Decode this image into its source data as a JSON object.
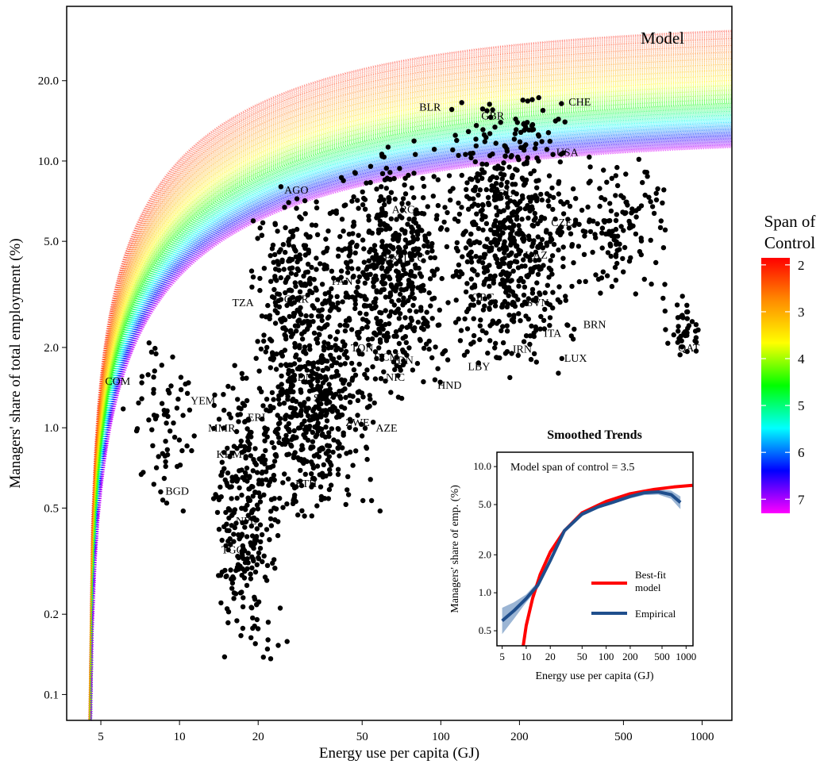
{
  "chart_data": [
    {
      "type": "scatter",
      "title": "",
      "corner_label": "Model",
      "xlabel": "Energy use per capita (GJ)",
      "ylabel": "Managers' share of total employment (%)",
      "x_scale": "log",
      "y_scale": "log",
      "xlim": [
        3.7,
        1300
      ],
      "ylim": [
        0.08,
        38
      ],
      "x_ticks": [
        5,
        10,
        20,
        50,
        100,
        200,
        500,
        1000
      ],
      "x_tick_labels": [
        "5",
        "10",
        "20",
        "50",
        "100",
        "200",
        "500",
        "1000"
      ],
      "y_ticks": [
        0.1,
        0.2,
        0.5,
        1.0,
        2.0,
        5.0,
        10.0,
        20.0
      ],
      "y_tick_labels": [
        "0.1",
        "0.2",
        "0.5",
        "1.0",
        "2.0",
        "5.0",
        "10.0",
        "20.0"
      ],
      "grid": false,
      "legend": {
        "title_lines": [
          "Span of",
          "Control"
        ],
        "placement": "right",
        "type": "colorbar",
        "range": [
          1.85,
          7.3
        ],
        "ticks": [
          2,
          3,
          4,
          5,
          6,
          7
        ],
        "tick_labels": [
          "2",
          "3",
          "4",
          "5",
          "6",
          "7"
        ],
        "gradient": [
          "#ff0000",
          "#ff8c00",
          "#ffff00",
          "#00ff00",
          "#00ffff",
          "#0000ff",
          "#ff00ff"
        ]
      },
      "model_band": {
        "span_min": 2,
        "span_max": 7.2,
        "curve": "y = k (1 - (E0/x)^0.45), k = 100/(span+1)",
        "E0": 4.5,
        "alpha": 0.45,
        "sample_spans": [
          2.0,
          2.2,
          2.4,
          2.6,
          2.8,
          3.0,
          3.2,
          3.4,
          3.6,
          3.8,
          4.0,
          4.2,
          4.4,
          4.6,
          4.8,
          5.0,
          5.2,
          5.4,
          5.6,
          5.8,
          6.0,
          6.2,
          6.4,
          6.6,
          6.8,
          7.0,
          7.2
        ]
      },
      "country_labels": [
        {
          "code": "COM",
          "x": 5.8,
          "y": 1.5
        },
        {
          "code": "YEM",
          "x": 12.3,
          "y": 1.27
        },
        {
          "code": "MMR",
          "x": 14.5,
          "y": 1.0
        },
        {
          "code": "KHM",
          "x": 15.5,
          "y": 0.8
        },
        {
          "code": "BGD",
          "x": 9.8,
          "y": 0.58
        },
        {
          "code": "ERI",
          "x": 19.7,
          "y": 1.1
        },
        {
          "code": "SDN",
          "x": 29.5,
          "y": 1.55
        },
        {
          "code": "SLV",
          "x": 35.5,
          "y": 1.3
        },
        {
          "code": "NPL",
          "x": 18.0,
          "y": 0.45
        },
        {
          "code": "TGO",
          "x": 16.0,
          "y": 0.35
        },
        {
          "code": "ETH",
          "x": 30.5,
          "y": 0.62
        },
        {
          "code": "ZWE",
          "x": 48.0,
          "y": 1.05
        },
        {
          "code": "AZE",
          "x": 62.0,
          "y": 1.0
        },
        {
          "code": "TZA",
          "x": 17.5,
          "y": 2.95
        },
        {
          "code": "CMR",
          "x": 28.0,
          "y": 3.05
        },
        {
          "code": "TON",
          "x": 50.0,
          "y": 2.0
        },
        {
          "code": "DCM",
          "x": 62.0,
          "y": 1.85
        },
        {
          "code": "IDN",
          "x": 72.0,
          "y": 1.8
        },
        {
          "code": "NIC",
          "x": 67.0,
          "y": 1.55
        },
        {
          "code": "HND",
          "x": 108.0,
          "y": 1.45
        },
        {
          "code": "LBY",
          "x": 140.0,
          "y": 1.7
        },
        {
          "code": "PAN",
          "x": 42.0,
          "y": 3.55
        },
        {
          "code": "MEX",
          "x": 62.0,
          "y": 4.35
        },
        {
          "code": "LYC",
          "x": 79.0,
          "y": 4.35
        },
        {
          "code": "AGO",
          "x": 28.0,
          "y": 7.8
        },
        {
          "code": "ARG",
          "x": 72.0,
          "y": 6.6
        },
        {
          "code": "BLR",
          "x": 91.0,
          "y": 16.0
        },
        {
          "code": "GBR",
          "x": 158.0,
          "y": 14.8
        },
        {
          "code": "CHE",
          "x": 340.0,
          "y": 16.7
        },
        {
          "code": "USA",
          "x": 305.0,
          "y": 10.8
        },
        {
          "code": "POL",
          "x": 172.0,
          "y": 7.6
        },
        {
          "code": "CZE",
          "x": 290.0,
          "y": 5.9
        },
        {
          "code": "KAZ",
          "x": 232.0,
          "y": 4.45
        },
        {
          "code": "GRC",
          "x": 145.0,
          "y": 3.1
        },
        {
          "code": "SVN",
          "x": 235.0,
          "y": 2.95
        },
        {
          "code": "BRN",
          "x": 388.0,
          "y": 2.45
        },
        {
          "code": "ITA",
          "x": 268.0,
          "y": 2.27
        },
        {
          "code": "IRN",
          "x": 205.0,
          "y": 1.98
        },
        {
          "code": "LUX",
          "x": 328.0,
          "y": 1.83
        },
        {
          "code": "QAT",
          "x": 890.0,
          "y": 2.0
        }
      ],
      "series": [
        {
          "name": "Empirical",
          "clusters": [
            {
              "x_range": [
                6,
                13
              ],
              "y_range": [
                0.4,
                2.5
              ],
              "n": 70
            },
            {
              "x_range": [
                13,
                26
              ],
              "y_range": [
                0.12,
                1.8
              ],
              "n": 320
            },
            {
              "x_range": [
                19,
                60
              ],
              "y_range": [
                0.4,
                3.0
              ],
              "n": 380
            },
            {
              "x_range": [
                18,
                50
              ],
              "y_range": [
                0.8,
                9.5
              ],
              "n": 380
            },
            {
              "x_range": [
                40,
                110
              ],
              "y_range": [
                1.2,
                12.0
              ],
              "n": 520
            },
            {
              "x_range": [
                100,
                330
              ],
              "y_range": [
                1.4,
                19.0
              ],
              "n": 650
            },
            {
              "x_range": [
                260,
                800
              ],
              "y_range": [
                3.0,
                11.0
              ],
              "n": 150
            },
            {
              "x_range": [
                700,
                1000
              ],
              "y_range": [
                1.8,
                3.2
              ],
              "n": 40
            }
          ]
        }
      ]
    },
    {
      "type": "line",
      "title": "Smoothed Trends",
      "annotation": "Model span of control = 3.5",
      "xlabel": "Energy use per capita (GJ)",
      "ylabel": "Managers' share of emp. (%)",
      "x_scale": "log",
      "y_scale": "log",
      "xlim": [
        4.3,
        1220
      ],
      "ylim": [
        0.38,
        13
      ],
      "x_ticks": [
        5,
        10,
        20,
        50,
        100,
        200,
        500,
        1000
      ],
      "x_tick_labels": [
        "5",
        "10",
        "20",
        "50",
        "100",
        "200",
        "500",
        "1000"
      ],
      "y_ticks": [
        0.5,
        1.0,
        2.0,
        5.0,
        10.0
      ],
      "y_tick_labels": [
        "0.5",
        "1.0",
        "2.0",
        "5.0",
        "10.0"
      ],
      "legend": {
        "placement": "bottom-right"
      },
      "series": [
        {
          "name": "Best-fit model",
          "label_lines": [
            "Best-fit",
            "model"
          ],
          "color": "#ff0000",
          "x": [
            9.0,
            10.0,
            12.0,
            15.0,
            20.0,
            30.0,
            50.0,
            100.0,
            200.0,
            400.0,
            700.0,
            1200.0
          ],
          "y": [
            0.35,
            0.55,
            0.9,
            1.4,
            2.1,
            3.1,
            4.3,
            5.3,
            6.1,
            6.6,
            6.9,
            7.1
          ]
        },
        {
          "name": "Empirical",
          "label_lines": [
            "Empirical"
          ],
          "color": "#1f4e8c",
          "band_color": "#7a9cc6",
          "x": [
            5.0,
            7.0,
            10.0,
            14.0,
            20.0,
            30.0,
            50.0,
            80.0,
            120.0,
            200.0,
            300.0,
            450.0,
            650.0,
            850.0
          ],
          "y": [
            0.6,
            0.72,
            0.9,
            1.15,
            1.8,
            3.1,
            4.2,
            4.8,
            5.2,
            5.8,
            6.2,
            6.3,
            6.0,
            5.2
          ],
          "band_lower": [
            0.47,
            0.62,
            0.84,
            1.08,
            1.7,
            3.0,
            4.05,
            4.65,
            5.05,
            5.6,
            5.95,
            6.0,
            5.55,
            4.6
          ],
          "band_upper": [
            0.76,
            0.84,
            0.97,
            1.22,
            1.9,
            3.2,
            4.35,
            4.95,
            5.35,
            6.0,
            6.45,
            6.6,
            6.45,
            5.8
          ]
        }
      ]
    }
  ]
}
